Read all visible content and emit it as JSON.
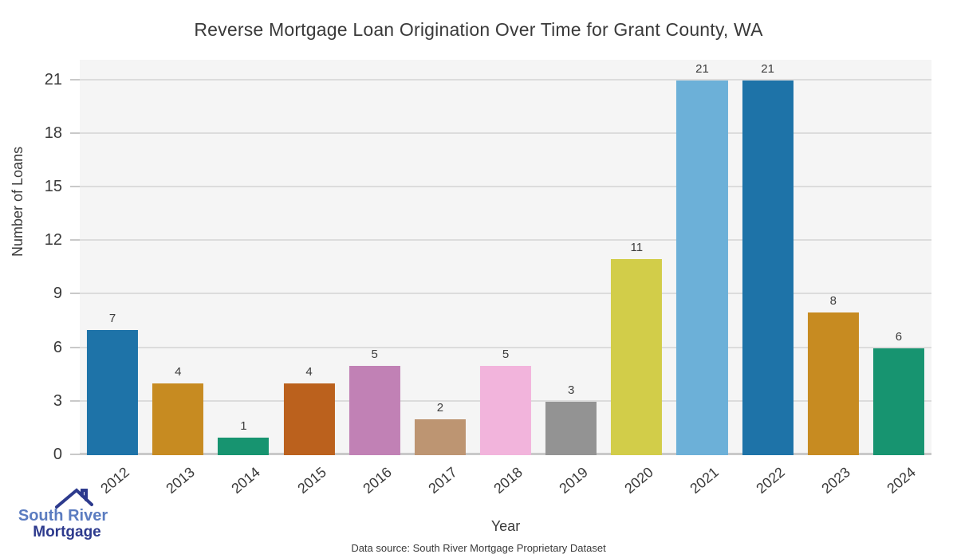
{
  "title": "Reverse Mortgage Loan Origination Over Time for Grant County, WA",
  "chart_data": {
    "type": "bar",
    "categories": [
      "2012",
      "2013",
      "2014",
      "2015",
      "2016",
      "2017",
      "2018",
      "2019",
      "2020",
      "2021",
      "2022",
      "2023",
      "2024"
    ],
    "values": [
      7,
      4,
      1,
      4,
      5,
      2,
      5,
      3,
      11,
      21,
      21,
      8,
      6
    ],
    "bar_colors": [
      "#1e73a8",
      "#c78b21",
      "#179470",
      "#bb611d",
      "#c181b5",
      "#bd9572",
      "#f2b4dc",
      "#939393",
      "#d2cd49",
      "#6cb0d8",
      "#1e73a8",
      "#c78b21",
      "#179470"
    ],
    "title": "Reverse Mortgage Loan Origination Over Time for Grant County, WA",
    "xlabel": "Year",
    "ylabel": "Number of Loans",
    "ylim": [
      0,
      22.1
    ],
    "yticks": [
      0,
      3,
      6,
      9,
      12,
      15,
      18,
      21
    ],
    "grid": true,
    "legend": "none",
    "plot_background": "#f5f5f5",
    "grid_color": "#dcdcdc",
    "value_labels_shown": true
  },
  "footer": {
    "source": "Data source: South River Mortgage Proprietary Dataset"
  },
  "logo": {
    "line1": "South River",
    "line2": "Mortgage",
    "line1_color": "#5b7cc0",
    "line2_color": "#2d3a8d",
    "roof_color": "#2d3a8d"
  }
}
